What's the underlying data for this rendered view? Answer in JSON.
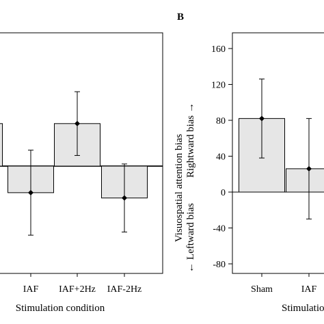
{
  "chart_data": [
    {
      "panel": "",
      "type": "bar",
      "categories": [
        "",
        "IAF",
        "IAF+2Hz",
        "IAF-2Hz"
      ],
      "values": [
        40,
        -25,
        40,
        -30
      ],
      "error": [
        20,
        40,
        30,
        32
      ],
      "xlabel": "Stimulation condition",
      "ylabel": "",
      "ylim": [
        -80,
        100
      ]
    },
    {
      "panel": "B",
      "type": "bar",
      "categories": [
        "Sham",
        "IAF"
      ],
      "values": [
        82,
        26
      ],
      "error": [
        44,
        56
      ],
      "xlabel": "Stimulation condition",
      "ylabel": "Visuospatial attention bias",
      "ylabel_positive": "Rightward bias →",
      "ylabel_negative": "← Leftward bias",
      "ylim": [
        -90,
        170
      ],
      "yticks": [
        -80,
        -40,
        0,
        40,
        80,
        120,
        160
      ]
    }
  ],
  "colors": {
    "bar_fill": "#e6e6e6",
    "bar_stroke": "#000000"
  }
}
